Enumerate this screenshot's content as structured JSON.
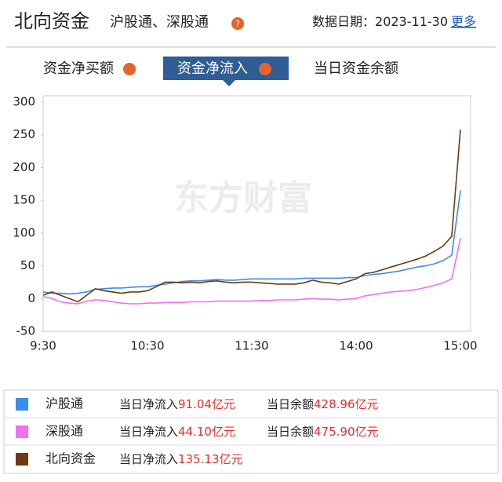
{
  "header": {
    "title": "北向资金",
    "subtitle": "沪股通、深股通",
    "date_label": "数据日期：",
    "date": "2023-11-30",
    "more": "更多"
  },
  "tabs": [
    "资金净买额",
    "资金净流入",
    "当日资金余额"
  ],
  "watermark": "东方财富",
  "chart_data": {
    "type": "line",
    "categories": [
      "9:30",
      null,
      null,
      null,
      null,
      null,
      null,
      null,
      null,
      null,
      null,
      null,
      "10:30",
      null,
      null,
      null,
      null,
      null,
      null,
      null,
      null,
      null,
      null,
      null,
      "11:30",
      null,
      null,
      null,
      null,
      null,
      null,
      null,
      null,
      null,
      null,
      null,
      "14:00",
      null,
      null,
      null,
      null,
      null,
      null,
      null,
      null,
      null,
      null,
      null,
      "15:00"
    ],
    "ylim": [
      -50,
      300
    ],
    "yticks": [
      -50,
      0,
      50,
      100,
      150,
      200,
      250,
      300
    ],
    "grid": false,
    "series": [
      {
        "name": "沪股通",
        "color": "#3a8ee6",
        "values": [
          10,
          8,
          8,
          7,
          8,
          10,
          14,
          15,
          16,
          16,
          17,
          18,
          18,
          20,
          22,
          24,
          26,
          27,
          27,
          28,
          29,
          28,
          28,
          29,
          30,
          30,
          30,
          30,
          30,
          30,
          31,
          31,
          31,
          31,
          31,
          32,
          32,
          35,
          37,
          38,
          40,
          42,
          45,
          48,
          50,
          53,
          58,
          66,
          165
        ]
      },
      {
        "name": "深股通",
        "color": "#f070f0",
        "values": [
          3,
          0,
          -5,
          -7,
          -8,
          -4,
          -2,
          -3,
          -5,
          -7,
          -8,
          -8,
          -7,
          -7,
          -6,
          -6,
          -6,
          -5,
          -5,
          -5,
          -4,
          -4,
          -4,
          -4,
          -4,
          -3,
          -3,
          -2,
          -2,
          -2,
          -1,
          0,
          -1,
          -1,
          -2,
          -1,
          0,
          4,
          6,
          8,
          10,
          11,
          12,
          14,
          17,
          20,
          24,
          30,
          92
        ]
      },
      {
        "name": "北向资金",
        "color": "#6b3a10",
        "values": [
          5,
          10,
          5,
          0,
          -5,
          5,
          15,
          12,
          10,
          8,
          10,
          10,
          12,
          18,
          25,
          25,
          24,
          25,
          24,
          26,
          27,
          25,
          24,
          25,
          25,
          24,
          23,
          22,
          22,
          22,
          24,
          28,
          25,
          24,
          22,
          26,
          30,
          38,
          40,
          44,
          48,
          52,
          56,
          60,
          65,
          72,
          80,
          95,
          258
        ]
      }
    ]
  },
  "summary": [
    {
      "net_label": "当日净流入",
      "net": "91.04",
      "net_unit": "亿元",
      "balance_label": "当日余额",
      "balance": "428.96",
      "balance_unit": "亿元"
    },
    {
      "net_label": "当日净流入",
      "net": "44.10",
      "net_unit": "亿元",
      "balance_label": "当日余额",
      "balance": "475.90",
      "balance_unit": "亿元"
    },
    {
      "net_label": "当日净流入",
      "net": "135.13",
      "net_unit": "亿元"
    }
  ]
}
